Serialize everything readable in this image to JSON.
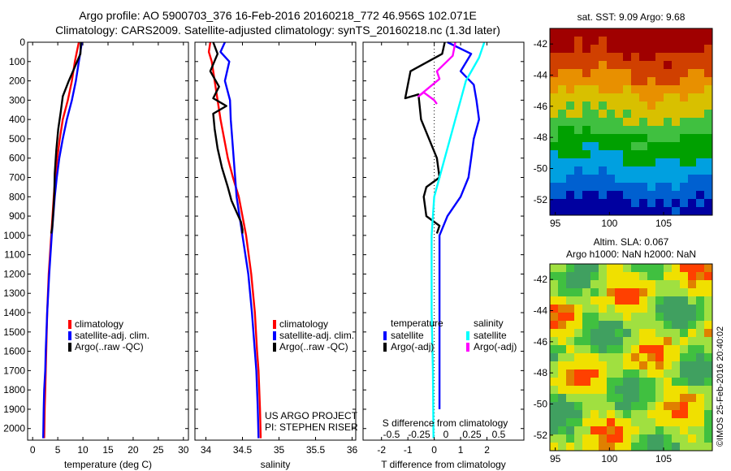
{
  "header": {
    "line1": "Argo profile: AO 5900703_376 16-Feb-2016 20160218_772 46.956S 102.071E",
    "line2": "Climatology: CARS2009. Satellite-adjusted climatology: synTS_20160218.nc (1.3d later)"
  },
  "credits": {
    "project": "US ARGO PROJECT",
    "pi": "PI: STEPHEN RISER",
    "stamp": "©IMOS 25-Feb-2016 20:40:02"
  },
  "chart_data": [
    {
      "type": "line",
      "panel": "temperature",
      "xlabel": "temperature (deg C)",
      "ylabel": "",
      "xlim": [
        -1,
        31
      ],
      "ylim": [
        2060,
        0
      ],
      "xticks": [
        "0",
        "5",
        "10",
        "15",
        "20",
        "25",
        "30"
      ],
      "yticks": [
        "0",
        "100",
        "200",
        "300",
        "400",
        "500",
        "600",
        "700",
        "800",
        "900",
        "1000",
        "1100",
        "1200",
        "1300",
        "1400",
        "1500",
        "1600",
        "1700",
        "1800",
        "1900",
        "2000"
      ],
      "legend": {
        "placement": "bottom-center",
        "entries": [
          "climatology",
          "satellite-adj. clim.",
          "Argo(..raw -QC)"
        ]
      },
      "series": [
        {
          "name": "climatology",
          "color": "#ff0000",
          "x": [
            9.2,
            8.8,
            8.4,
            7.8,
            7.0,
            6.0,
            5.4,
            4.9,
            4.5,
            4.2,
            3.7,
            3.2,
            2.9,
            2.7,
            2.6,
            2.5,
            2.4,
            2.3
          ],
          "y": [
            0,
            50,
            100,
            200,
            300,
            400,
            500,
            600,
            700,
            800,
            1000,
            1200,
            1400,
            1600,
            1700,
            1800,
            1900,
            2050
          ]
        },
        {
          "name": "satellite-adj. clim.",
          "color": "#0000ff",
          "x": [
            9.8,
            9.5,
            9.2,
            8.6,
            7.8,
            6.8,
            6.0,
            5.3,
            4.8,
            4.4,
            3.8,
            3.3,
            2.9,
            2.6,
            2.5,
            2.3,
            2.2,
            2.1
          ],
          "y": [
            0,
            50,
            100,
            200,
            300,
            400,
            500,
            600,
            700,
            800,
            1000,
            1200,
            1400,
            1600,
            1700,
            1800,
            1900,
            2050
          ]
        },
        {
          "name": "Argo(..raw -QC)",
          "color": "#000000",
          "x": [
            9.6,
            9.5,
            8.2,
            7.2,
            6.0,
            5.6,
            5.1,
            4.7,
            4.4,
            4.3,
            4.1,
            3.9,
            3.7
          ],
          "y": [
            0,
            60,
            140,
            200,
            280,
            360,
            450,
            560,
            680,
            790,
            880,
            960,
            990
          ]
        }
      ]
    },
    {
      "type": "line",
      "panel": "salinity",
      "xlabel": "salinity",
      "ylabel": "",
      "xlim": [
        33.85,
        36.05
      ],
      "ylim": [
        2060,
        0
      ],
      "xticks": [
        "34",
        "34.5",
        "35",
        "35.5",
        "36"
      ],
      "legend": {
        "placement": "bottom-center",
        "entries": [
          "climatology",
          "satellite-adj. clim.",
          "Argo(..raw -QC)"
        ]
      },
      "series": [
        {
          "name": "climatology",
          "color": "#ff0000",
          "x": [
            34.06,
            34.04,
            34.08,
            34.12,
            34.16,
            34.2,
            34.25,
            34.3,
            34.37,
            34.45,
            34.55,
            34.62,
            34.67,
            34.7,
            34.72,
            34.73,
            34.74,
            34.75
          ],
          "y": [
            0,
            50,
            100,
            200,
            300,
            400,
            500,
            600,
            700,
            800,
            1000,
            1200,
            1400,
            1600,
            1700,
            1800,
            1900,
            2050
          ]
        },
        {
          "name": "satellite-adj. clim.",
          "color": "#0000ff",
          "x": [
            34.26,
            34.2,
            34.32,
            34.26,
            34.33,
            34.34,
            34.36,
            34.38,
            34.4,
            34.42,
            34.5,
            34.58,
            34.63,
            34.67,
            34.69,
            34.7,
            34.71,
            34.72
          ],
          "y": [
            0,
            50,
            100,
            200,
            300,
            400,
            500,
            600,
            700,
            800,
            1000,
            1200,
            1400,
            1600,
            1700,
            1800,
            1900,
            2050
          ]
        },
        {
          "name": "Argo(..raw -QC)",
          "color": "#000000",
          "x": [
            34.1,
            34.16,
            34.06,
            34.18,
            34.1,
            34.28,
            34.1,
            34.12,
            34.16,
            34.22,
            34.3,
            34.35,
            34.42,
            34.48,
            34.5,
            34.5
          ],
          "y": [
            0,
            60,
            150,
            230,
            290,
            330,
            370,
            450,
            550,
            650,
            750,
            820,
            880,
            930,
            970,
            990
          ]
        }
      ]
    },
    {
      "type": "line",
      "panel": "difference",
      "xlabel": "T difference from climatology",
      "top_axis_label": "S difference from climatology",
      "xlim": [
        -2.7,
        3.4
      ],
      "ylim": [
        2060,
        0
      ],
      "xticks": [
        "-2",
        "-1",
        "0",
        "1",
        "2"
      ],
      "top_xticks": [
        "-0.5",
        "-0.25",
        "0",
        "0.25",
        "0.5"
      ],
      "zero_line": "dotted",
      "legend": {
        "placement": "bottom-center",
        "temperature_title": "temperature",
        "salinity_title": "salinity",
        "entries": [
          "satellite",
          "Argo(-adj)",
          "satellite",
          "Argo(-adj)"
        ]
      },
      "series": [
        {
          "name": "satellite",
          "group": "temperature",
          "color": "#0000ff",
          "x": [
            0.5,
            1.4,
            1.0,
            1.5,
            1.6,
            1.7,
            1.5,
            1.4,
            1.3,
            1.0,
            0.5,
            0.2,
            0.2
          ],
          "y": [
            0,
            60,
            150,
            220,
            300,
            400,
            500,
            600,
            700,
            800,
            900,
            1000,
            1900
          ]
        },
        {
          "name": "Argo(-adj)",
          "group": "temperature",
          "color": "#000000",
          "x": [
            0.4,
            0.3,
            -0.9,
            -1.1,
            -0.6,
            -0.5,
            0.1,
            0.2,
            -0.3,
            -0.4,
            -0.3,
            0.2,
            0.1
          ],
          "y": [
            0,
            60,
            150,
            290,
            270,
            400,
            600,
            700,
            750,
            800,
            900,
            950,
            990
          ]
        },
        {
          "name": "satellite",
          "group": "salinity",
          "color": "#00ffff",
          "x": [
            1.9,
            1.7,
            1.2,
            1.0,
            0.8,
            0.6,
            0.4,
            0.2,
            0.0,
            -0.1,
            -0.1,
            -0.05,
            -0.03
          ],
          "y": [
            0,
            80,
            200,
            300,
            400,
            500,
            600,
            700,
            800,
            1000,
            1400,
            1700,
            2050
          ]
        },
        {
          "name": "Argo(-adj)",
          "group": "salinity",
          "color": "#ff00ff",
          "x": [
            0.8,
            0.7,
            0.1,
            0.2,
            -0.6,
            -0.4,
            0.0,
            0.1
          ],
          "y": [
            0,
            70,
            150,
            190,
            280,
            260,
            300,
            320
          ]
        }
      ]
    },
    {
      "type": "heatmap",
      "panel": "sst-map",
      "title": "sat. SST: 9.09 Argo: 9.68",
      "xlim": [
        94.5,
        109.5
      ],
      "ylim": [
        -53,
        -41
      ],
      "xticks": [
        "95",
        "100",
        "105"
      ],
      "yticks": [
        "-42",
        "-44",
        "-46",
        "-48",
        "-50",
        "-52"
      ],
      "colors": [
        "#a00000",
        "#d04000",
        "#e89000",
        "#d8c000",
        "#40c040",
        "#00a000",
        "#00a0e0",
        "#0060d0",
        "#0000a0"
      ]
    },
    {
      "type": "heatmap",
      "panel": "sla-map",
      "title": "Altim. SLA: 0.067",
      "subtitle": "Argo h1000: NaN h2000: NaN",
      "xlim": [
        94.5,
        109.5
      ],
      "ylim": [
        -53,
        -41
      ],
      "xticks": [
        "95",
        "100",
        "105"
      ],
      "yticks": [
        "-42",
        "-44",
        "-46",
        "-48",
        "-50",
        "-52"
      ],
      "colors": [
        "#f0e000",
        "#a0e040",
        "#40c040",
        "#40a060",
        "#e08000",
        "#ff4000"
      ]
    }
  ]
}
